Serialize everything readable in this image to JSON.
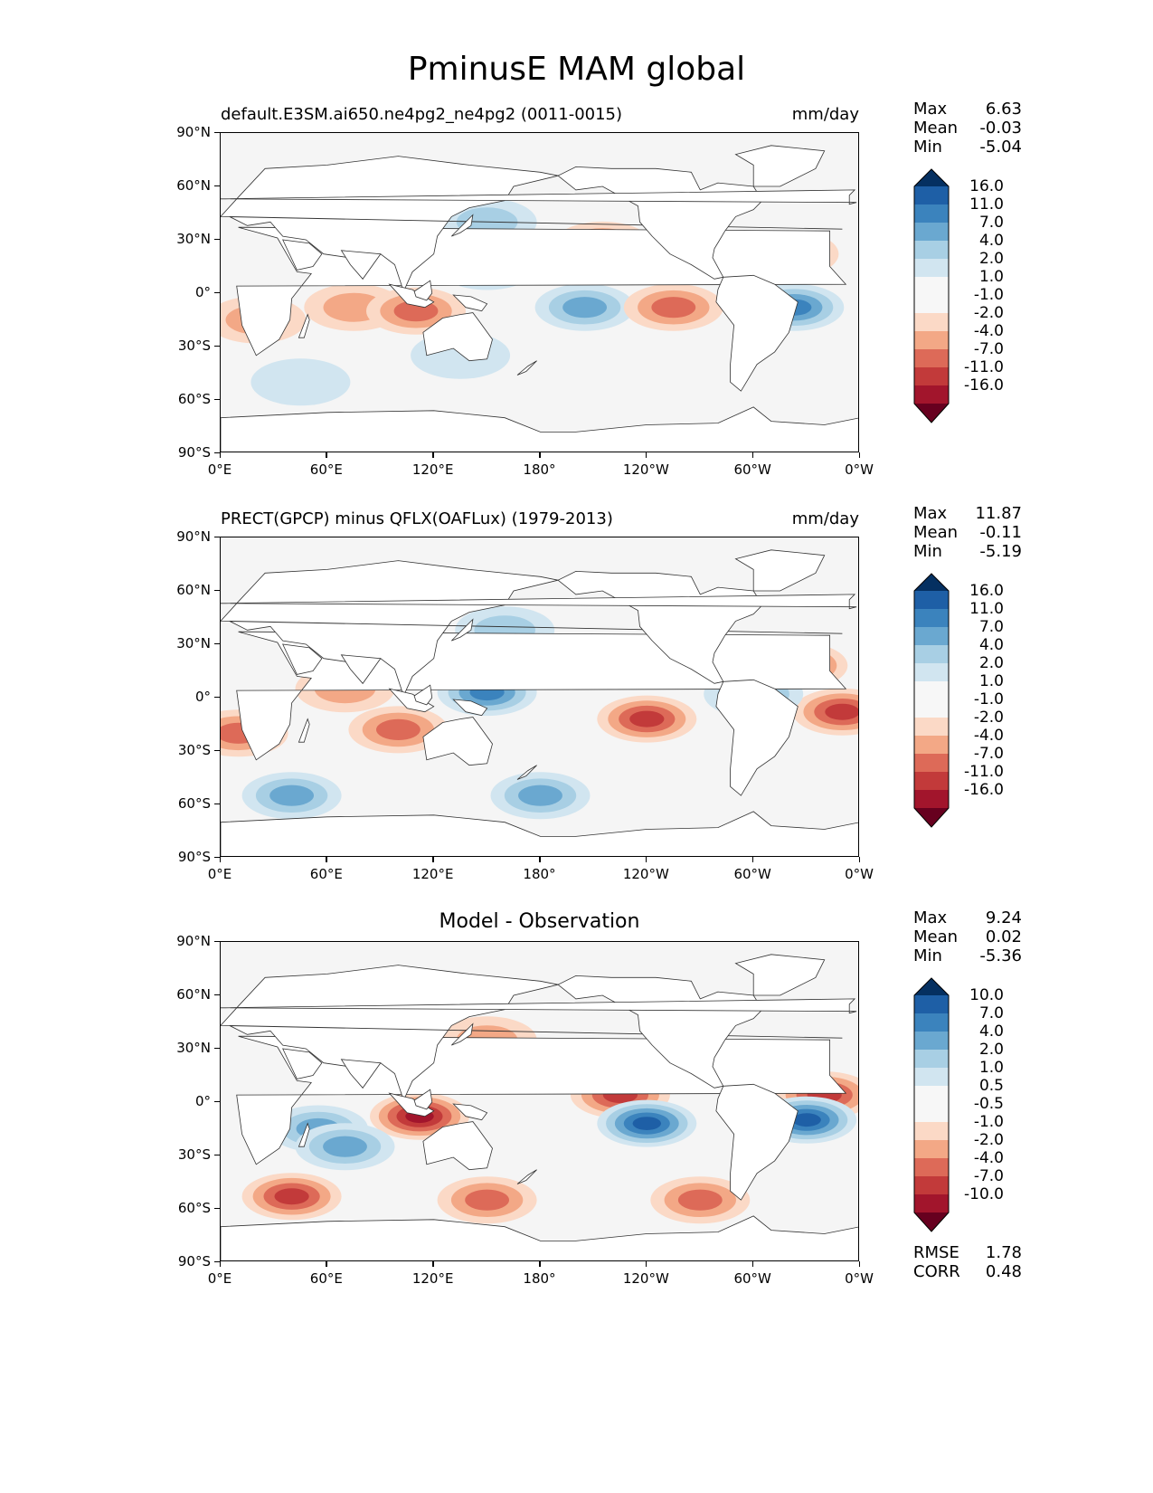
{
  "title": "PminusE MAM global",
  "colors": {
    "positive": [
      "#f7f7f7",
      "#d1e5f0",
      "#a8cfe4",
      "#6aa8d0",
      "#3b83bd",
      "#1e5fa6",
      "#053061"
    ],
    "negative": [
      "#f7f7f7",
      "#fbd9c6",
      "#f3a886",
      "#dd6a58",
      "#c23a3a",
      "#a2152c",
      "#67001f"
    ],
    "land": "#ffffff",
    "background": "#f5f5f5"
  },
  "axes": {
    "lat_ticks": [
      "90°N",
      "60°N",
      "30°N",
      "0°",
      "30°S",
      "60°S",
      "90°S"
    ],
    "lon_ticks": [
      "0°E",
      "60°E",
      "120°E",
      "180°",
      "120°W",
      "60°W",
      "0°W"
    ]
  },
  "panels": [
    {
      "left_title": "default.E3SM.ai650.ne4pg2_ne4pg2 (0011-0015)",
      "right_title": "mm/day",
      "center_title": "",
      "stats": [
        {
          "label": "Max",
          "value": "6.63"
        },
        {
          "label": "Mean",
          "value": "-0.03"
        },
        {
          "label": "Min",
          "value": "-5.04"
        }
      ],
      "colorbar_levels": [
        "16.0",
        "11.0",
        "7.0",
        "4.0",
        "2.0",
        "1.0",
        "-1.0",
        "-2.0",
        "-4.0",
        "-7.0",
        "-11.0",
        "-16.0"
      ],
      "extra_stats": []
    },
    {
      "left_title": "PRECT(GPCP) minus QFLX(OAFLux) (1979-2013)",
      "right_title": "mm/day",
      "center_title": "",
      "stats": [
        {
          "label": "Max",
          "value": "11.87"
        },
        {
          "label": "Mean",
          "value": "-0.11"
        },
        {
          "label": "Min",
          "value": "-5.19"
        }
      ],
      "colorbar_levels": [
        "16.0",
        "11.0",
        "7.0",
        "4.0",
        "2.0",
        "1.0",
        "-1.0",
        "-2.0",
        "-4.0",
        "-7.0",
        "-11.0",
        "-16.0"
      ],
      "extra_stats": []
    },
    {
      "left_title": "",
      "right_title": "",
      "center_title": "Model - Observation",
      "stats": [
        {
          "label": "Max",
          "value": "9.24"
        },
        {
          "label": "Mean",
          "value": "0.02"
        },
        {
          "label": "Min",
          "value": "-5.36"
        }
      ],
      "colorbar_levels": [
        "10.0",
        "7.0",
        "4.0",
        "2.0",
        "1.0",
        "0.5",
        "-0.5",
        "-1.0",
        "-2.0",
        "-4.0",
        "-7.0",
        "-10.0"
      ],
      "extra_stats": [
        {
          "label": "RMSE",
          "value": "1.78"
        },
        {
          "label": "CORR",
          "value": "0.48"
        }
      ]
    }
  ],
  "map_data": [
    {
      "features": [
        {
          "lon": 150,
          "lat": 15,
          "level": 3
        },
        {
          "lon": 150,
          "lat": 40,
          "level": 2
        },
        {
          "lon": 205,
          "lat": -8,
          "level": 3
        },
        {
          "lon": 215,
          "lat": 27,
          "level": -3
        },
        {
          "lon": 320,
          "lat": 22,
          "level": -4
        },
        {
          "lon": 323,
          "lat": -8,
          "level": 4
        },
        {
          "lon": 75,
          "lat": -8,
          "level": -2
        },
        {
          "lon": 110,
          "lat": -10,
          "level": -3
        },
        {
          "lon": 255,
          "lat": -8,
          "level": -3
        },
        {
          "lon": 20,
          "lat": -15,
          "level": -2
        },
        {
          "lon": 45,
          "lat": -50,
          "level": 1
        },
        {
          "lon": 135,
          "lat": -35,
          "level": 1
        }
      ]
    },
    {
      "features": [
        {
          "lon": 160,
          "lat": 38,
          "level": 2
        },
        {
          "lon": 185,
          "lat": 20,
          "level": -3
        },
        {
          "lon": 150,
          "lat": 3,
          "level": 4
        },
        {
          "lon": 100,
          "lat": -18,
          "level": -3
        },
        {
          "lon": 240,
          "lat": -12,
          "level": -4
        },
        {
          "lon": 325,
          "lat": 18,
          "level": -4
        },
        {
          "lon": 350,
          "lat": -8,
          "level": -4
        },
        {
          "lon": 180,
          "lat": -55,
          "level": 3
        },
        {
          "lon": 40,
          "lat": -55,
          "level": 3
        },
        {
          "lon": 70,
          "lat": 5,
          "level": -2
        },
        {
          "lon": 10,
          "lat": -20,
          "level": -3
        },
        {
          "lon": 300,
          "lat": 2,
          "level": 3
        }
      ]
    },
    {
      "features": [
        {
          "lon": 155,
          "lat": 18,
          "level": 4
        },
        {
          "lon": 112,
          "lat": -8,
          "level": -5
        },
        {
          "lon": 225,
          "lat": 4,
          "level": -4
        },
        {
          "lon": 240,
          "lat": -12,
          "level": 5
        },
        {
          "lon": 340,
          "lat": 4,
          "level": -4
        },
        {
          "lon": 330,
          "lat": -10,
          "level": 5
        },
        {
          "lon": 55,
          "lat": -15,
          "level": 3
        },
        {
          "lon": 70,
          "lat": -25,
          "level": 3
        },
        {
          "lon": 40,
          "lat": -53,
          "level": -4
        },
        {
          "lon": 150,
          "lat": -55,
          "level": -3
        },
        {
          "lon": 270,
          "lat": -55,
          "level": -3
        },
        {
          "lon": 150,
          "lat": 35,
          "level": -2
        }
      ]
    }
  ]
}
